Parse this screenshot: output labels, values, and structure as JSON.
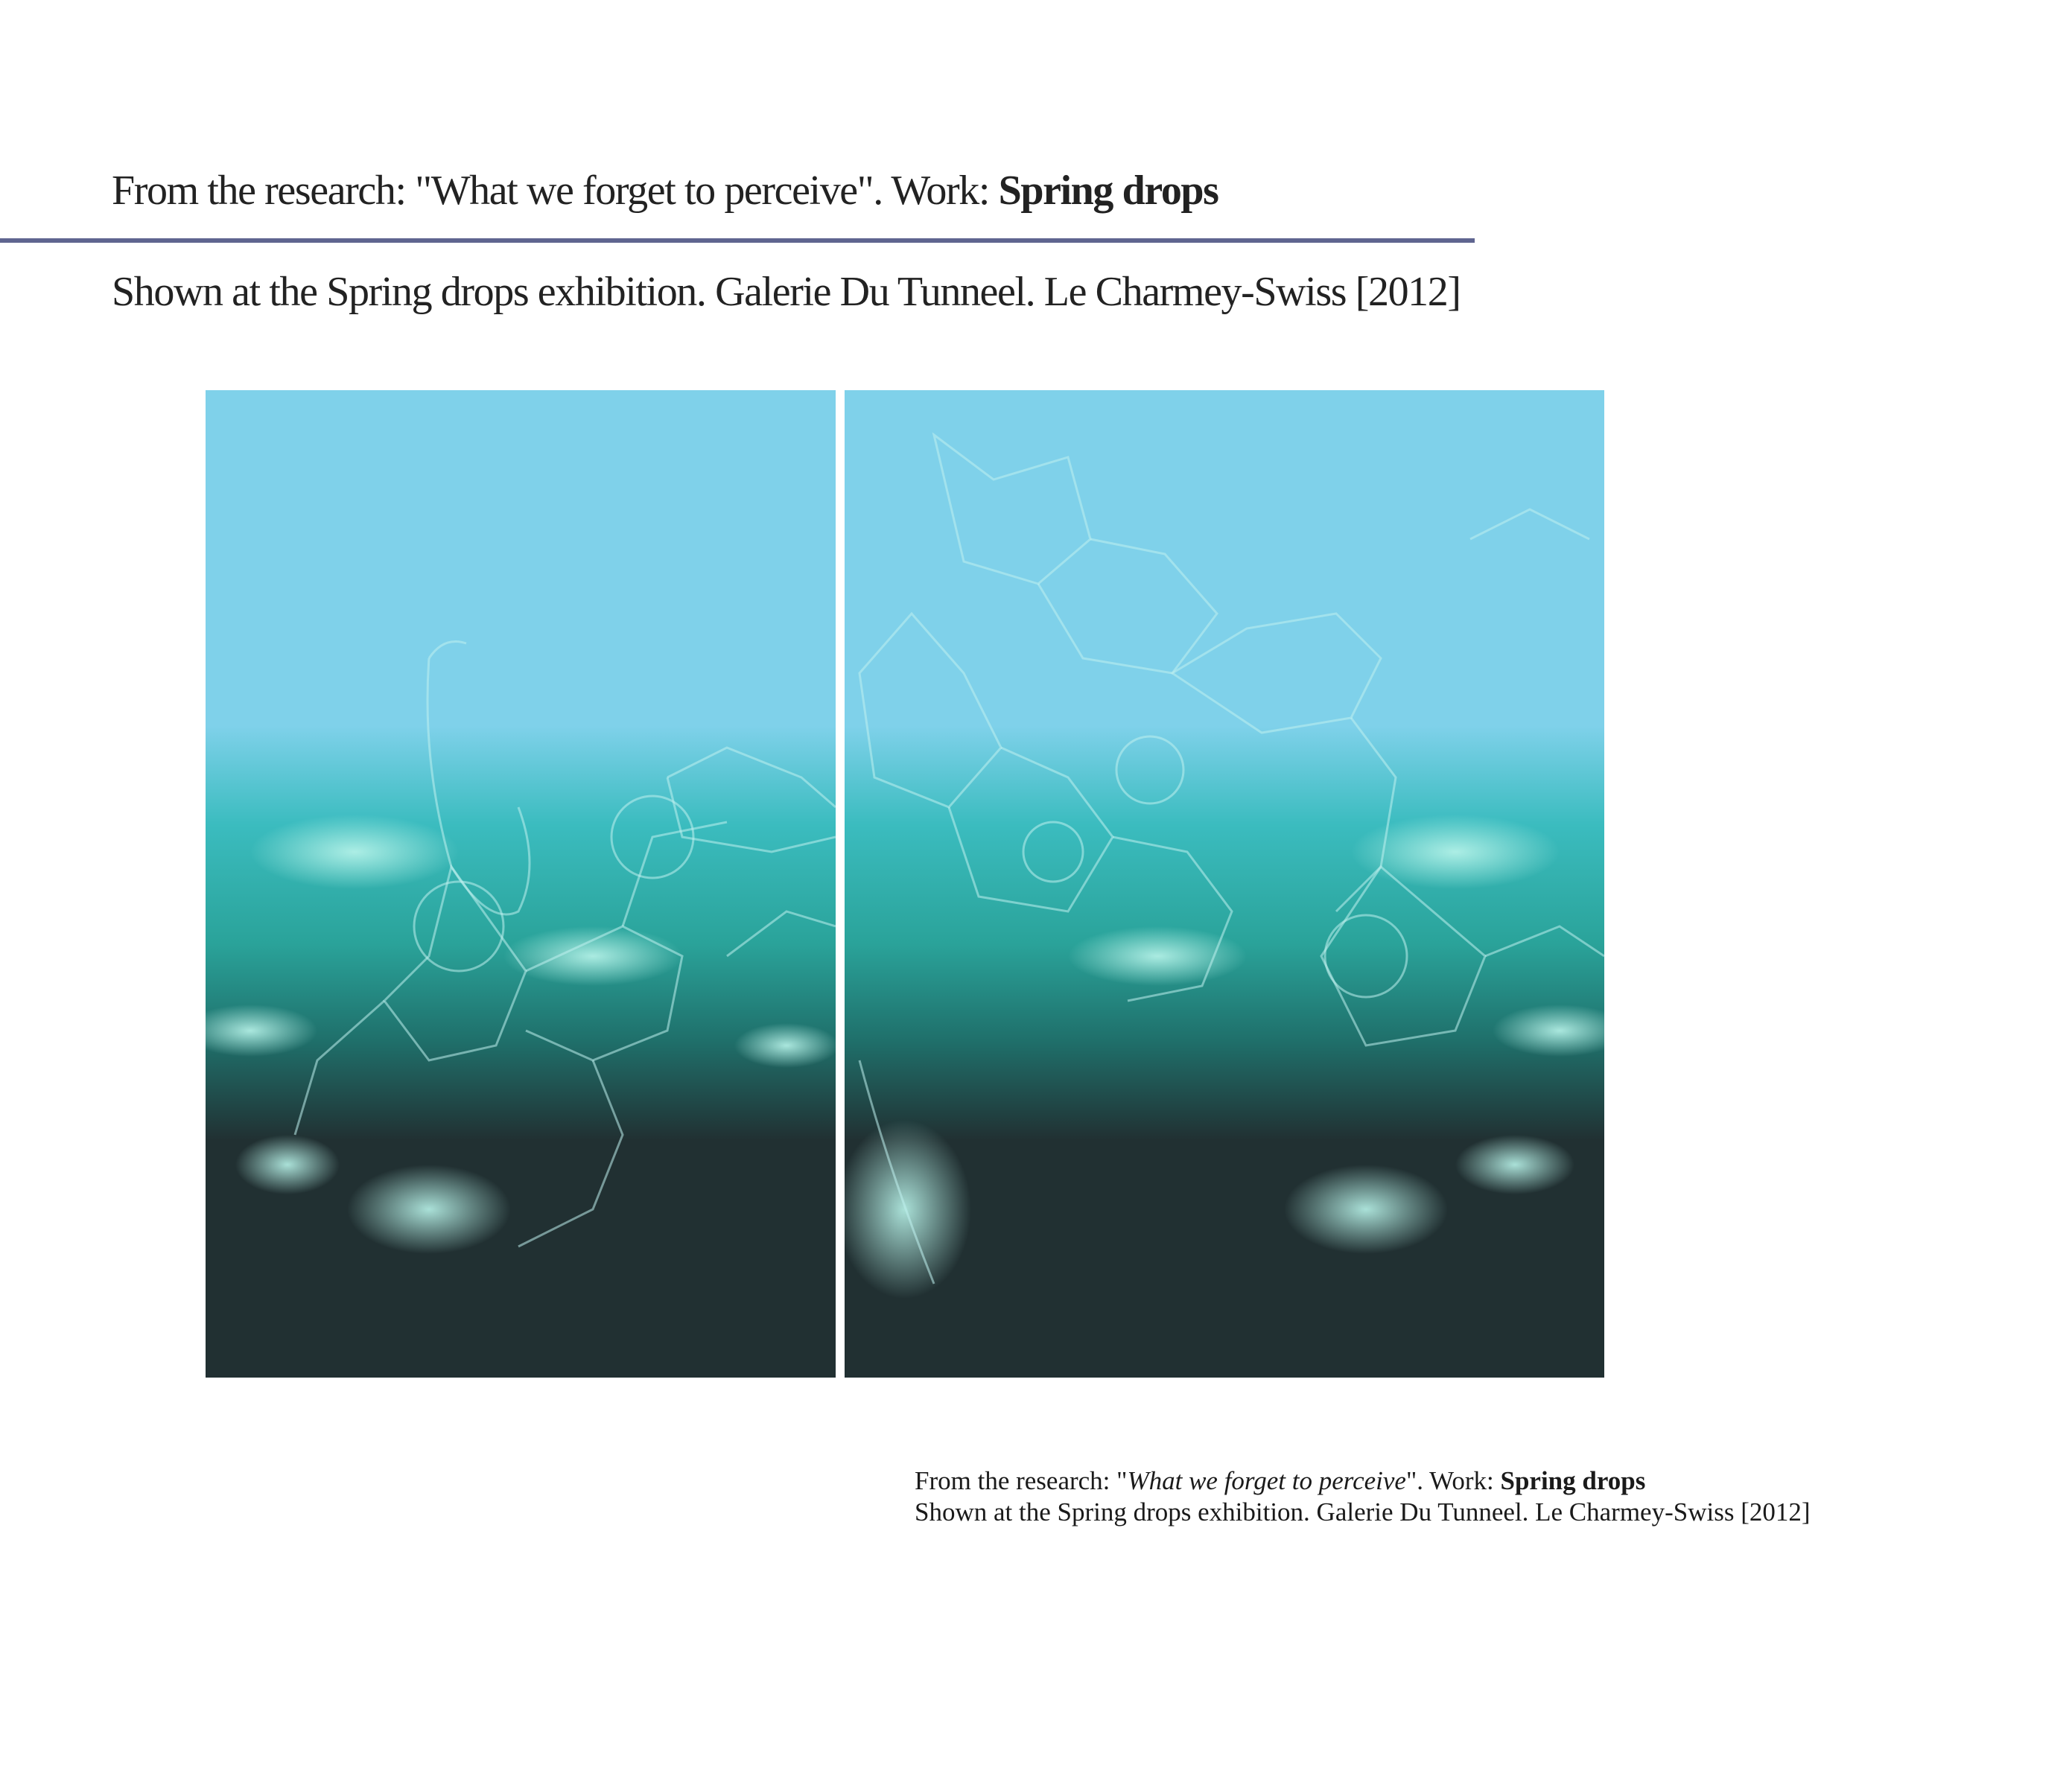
{
  "header": {
    "title_prefix": "From the research: \"What we forget to perceive\". Work: ",
    "title_work": "Spring drops",
    "subtitle": "Shown at the Spring drops exhibition. Galerie Du Tunneel. Le Charmey-Swiss [2012]"
  },
  "artwork": {
    "colors": {
      "sky": "#7fd1ea",
      "teal": "#2aa39a",
      "deep": "#213032",
      "rule": "#5f6590"
    }
  },
  "caption": {
    "line1_prefix": "From the research: \"",
    "line1_research": "What we forget to perceive",
    "line1_middle": "\". Work: ",
    "line1_work": "Spring drops",
    "line2": "Shown at the Spring drops exhibition. Galerie Du Tunneel. Le Charmey-Swiss [2012]"
  }
}
